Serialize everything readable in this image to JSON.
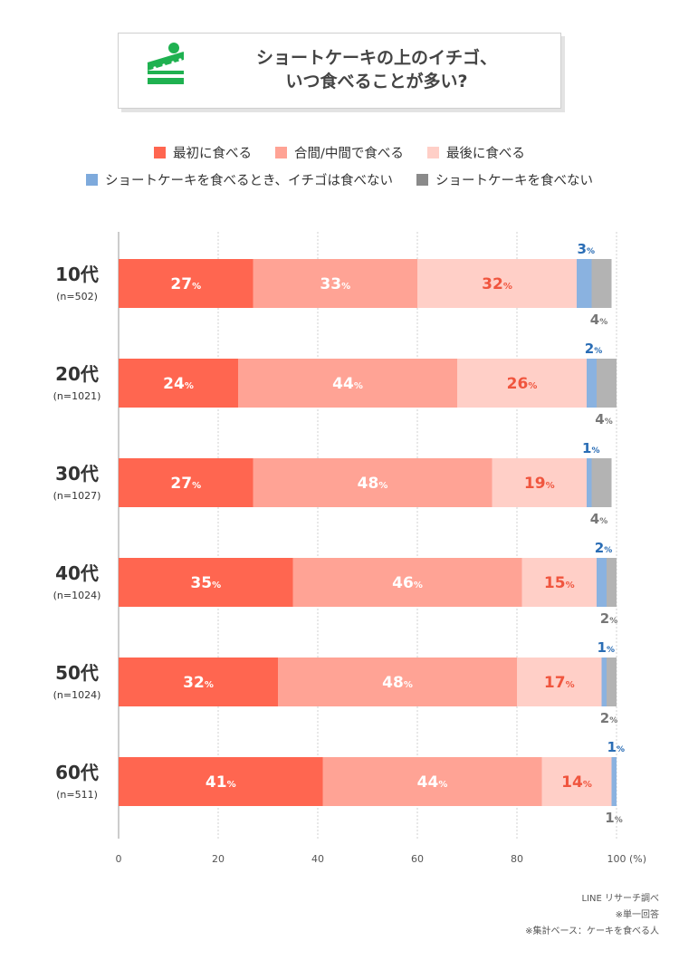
{
  "title": {
    "line1": "ショートケーキの上のイチゴ、",
    "line2": "いつ食べることが多い?"
  },
  "legend": [
    {
      "label": "最初に食べる",
      "color": "#ff6650"
    },
    {
      "label": "合間/中間で食べる",
      "color": "#ffa395"
    },
    {
      "label": "最後に食べる",
      "color": "#ffcfc7"
    },
    {
      "label": "ショートケーキを食べるとき、イチゴは食べない",
      "color": "#7eaadc"
    },
    {
      "label": "ショートケーキを食べない",
      "color": "#8a8a8a"
    }
  ],
  "chart_data": {
    "type": "bar",
    "orientation": "horizontal",
    "stacked": true,
    "categories": [
      "10代",
      "20代",
      "30代",
      "40代",
      "50代",
      "60代"
    ],
    "sample_sizes": [
      "(n=502)",
      "(n=1021)",
      "(n=1027)",
      "(n=1024)",
      "(n=1024)",
      "(n=511)"
    ],
    "series": [
      {
        "name": "最初に食べる",
        "color": "#ff6650",
        "label_color": "#ffffff",
        "values": [
          27,
          24,
          27,
          35,
          32,
          41
        ]
      },
      {
        "name": "合間/中間で食べる",
        "color": "#ffa395",
        "label_color": "#ffffff",
        "values": [
          33,
          44,
          48,
          46,
          48,
          44
        ]
      },
      {
        "name": "最後に食べる",
        "color": "#ffcfc7",
        "label_color": "#f0553e",
        "values": [
          32,
          26,
          19,
          15,
          17,
          14
        ]
      },
      {
        "name": "ショートケーキを食べるとき、イチゴは食べない",
        "color": "#8ab2e0",
        "label_color": "#2a6db5",
        "values": [
          3,
          2,
          1,
          2,
          1,
          1
        ]
      },
      {
        "name": "ショートケーキを食べない",
        "color": "#b3b3b3",
        "label_color": "#777777",
        "values": [
          4,
          4,
          4,
          2,
          2,
          1
        ]
      }
    ],
    "xlim": [
      0,
      100
    ],
    "xticks": [
      0,
      20,
      40,
      60,
      80,
      100
    ],
    "xunit": "(%)",
    "value_suffix": "%",
    "grid": true
  },
  "footer": {
    "source": "LINE リサーチ調べ",
    "note1": "※単一回答",
    "note2": "※集計ベース：ケーキを食べる人"
  }
}
